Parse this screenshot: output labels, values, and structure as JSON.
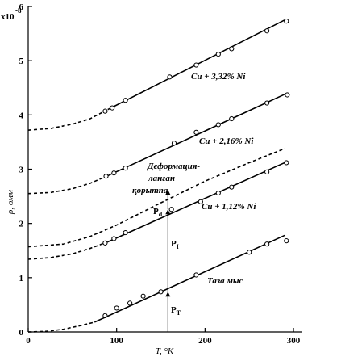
{
  "chart_data": {
    "type": "line",
    "xlabel": "T, °K",
    "ylabel": "ρ, омм",
    "y_multiplier": "x10",
    "y_exponent": "-8",
    "xlim": [
      0,
      310
    ],
    "ylim": [
      0,
      6
    ],
    "x_ticks": [
      0,
      100,
      200,
      300
    ],
    "y_ticks": [
      0,
      1,
      2,
      3,
      4,
      5,
      6
    ],
    "series": [
      {
        "name": "Cu + 3,32% Ni",
        "key": "cu332",
        "line": [
          [
            90,
            4.1
          ],
          [
            290,
            5.75
          ]
        ],
        "dashed": [
          [
            0,
            3.72
          ],
          [
            25,
            3.75
          ],
          [
            50,
            3.83
          ],
          [
            70,
            3.93
          ],
          [
            90,
            4.1
          ]
        ],
        "points": [
          [
            87,
            4.07
          ],
          [
            95,
            4.13
          ],
          [
            110,
            4.27
          ],
          [
            160,
            4.7
          ],
          [
            190,
            4.92
          ],
          [
            215,
            5.12
          ],
          [
            230,
            5.22
          ],
          [
            270,
            5.55
          ],
          [
            292,
            5.73
          ]
        ]
      },
      {
        "name": "Cu + 2,16% Ni",
        "key": "cu216",
        "line": [
          [
            90,
            2.88
          ],
          [
            290,
            4.38
          ]
        ],
        "dashed": [
          [
            0,
            2.55
          ],
          [
            25,
            2.57
          ],
          [
            50,
            2.64
          ],
          [
            70,
            2.74
          ],
          [
            90,
            2.88
          ]
        ],
        "points": [
          [
            88,
            2.87
          ],
          [
            97,
            2.93
          ],
          [
            110,
            3.02
          ],
          [
            165,
            3.48
          ],
          [
            190,
            3.68
          ],
          [
            215,
            3.82
          ],
          [
            230,
            3.93
          ],
          [
            270,
            4.22
          ],
          [
            293,
            4.37
          ]
        ]
      },
      {
        "name": "Деформацияланган қорытпа",
        "key": "deformed",
        "dashed": [
          [
            0,
            1.57
          ],
          [
            40,
            1.62
          ],
          [
            70,
            1.76
          ],
          [
            100,
            1.97
          ],
          [
            150,
            2.38
          ],
          [
            200,
            2.78
          ],
          [
            250,
            3.12
          ],
          [
            290,
            3.38
          ]
        ],
        "points": []
      },
      {
        "name": "Cu + 1,12% Ni",
        "key": "cu112",
        "line": [
          [
            90,
            1.66
          ],
          [
            290,
            3.12
          ]
        ],
        "dashed": [
          [
            0,
            1.34
          ],
          [
            25,
            1.37
          ],
          [
            50,
            1.44
          ],
          [
            70,
            1.54
          ],
          [
            90,
            1.66
          ]
        ],
        "points": [
          [
            87,
            1.64
          ],
          [
            97,
            1.72
          ],
          [
            110,
            1.83
          ],
          [
            162,
            2.26
          ],
          [
            195,
            2.4
          ],
          [
            215,
            2.56
          ],
          [
            230,
            2.67
          ],
          [
            270,
            2.95
          ],
          [
            292,
            3.12
          ]
        ]
      },
      {
        "name": "Таза мыс",
        "key": "pure",
        "line": [
          [
            75,
            0.18
          ],
          [
            290,
            1.78
          ]
        ],
        "dashed": [
          [
            0,
            0.0
          ],
          [
            20,
            0.01
          ],
          [
            40,
            0.05
          ],
          [
            60,
            0.12
          ],
          [
            75,
            0.18
          ]
        ],
        "points": [
          [
            87,
            0.3
          ],
          [
            100,
            0.44
          ],
          [
            115,
            0.53
          ],
          [
            130,
            0.66
          ],
          [
            150,
            0.74
          ],
          [
            190,
            1.05
          ],
          [
            250,
            1.47
          ],
          [
            270,
            1.62
          ],
          [
            292,
            1.68
          ]
        ]
      }
    ],
    "annotations": {
      "cu332": "Cu + 3,32% Ni",
      "cu216": "Cu + 2,16% Ni",
      "cu112": "Cu + 1,12% Ni",
      "pure": "Таза мыс",
      "deformed_1": "Деформация-",
      "deformed_2": "ланган",
      "deformed_3": "қорытпа",
      "rho_d": "P",
      "rho_d_sub": "d",
      "rho_i": "P",
      "rho_i_sub": "I",
      "rho_t": "P",
      "rho_t_sub": "T"
    },
    "arrows": {
      "rho_t": [
        [
          158,
          0.0
        ],
        [
          158,
          0.74
        ]
      ],
      "rho_i": [
        [
          158,
          0.74
        ],
        [
          158,
          2.26
        ]
      ],
      "rho_d": [
        [
          158,
          2.26
        ],
        [
          158,
          2.62
        ]
      ]
    },
    "grid": false,
    "legend": "none"
  }
}
